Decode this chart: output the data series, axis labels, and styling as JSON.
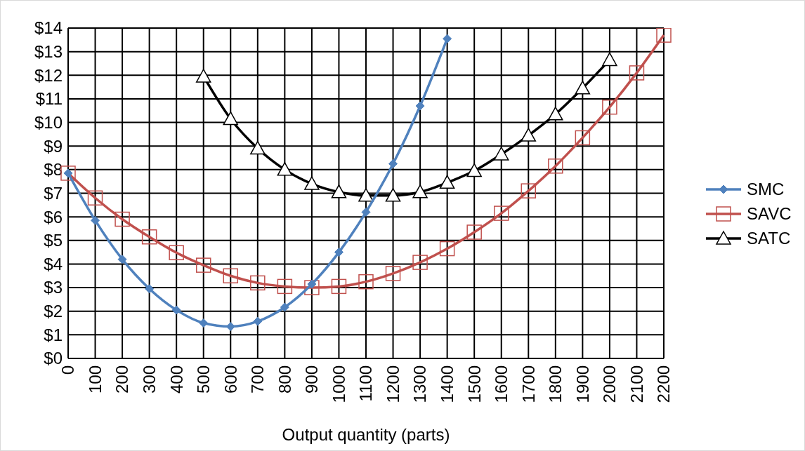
{
  "chart_data": {
    "type": "line",
    "xlabel": "Output quantity (parts)",
    "categories": [
      "0",
      "100",
      "200",
      "300",
      "400",
      "500",
      "600",
      "700",
      "800",
      "900",
      "1000",
      "1100",
      "1200",
      "1300",
      "1400",
      "1500",
      "1600",
      "1700",
      "1800",
      "1900",
      "2000",
      "2100",
      "2200"
    ],
    "ylim": [
      0,
      14
    ],
    "yticks": [
      {
        "value": 0,
        "label": "$0"
      },
      {
        "value": 1,
        "label": "$1"
      },
      {
        "value": 2,
        "label": "$2"
      },
      {
        "value": 3,
        "label": "$3"
      },
      {
        "value": 4,
        "label": "$4"
      },
      {
        "value": 5,
        "label": "$5"
      },
      {
        "value": 6,
        "label": "$6"
      },
      {
        "value": 7,
        "label": "$7"
      },
      {
        "value": 8,
        "label": "$8"
      },
      {
        "value": 9,
        "label": "$9"
      },
      {
        "value": 10,
        "label": "$10"
      },
      {
        "value": 11,
        "label": "$11"
      },
      {
        "value": 12,
        "label": "$12"
      },
      {
        "value": 13,
        "label": "$13"
      },
      {
        "value": 14,
        "label": "$14"
      }
    ],
    "grid": true,
    "legend": "right",
    "series": [
      {
        "name": "SMC",
        "color": "#4f81bd",
        "marker": "diamond",
        "values": [
          7.85,
          5.85,
          4.2,
          2.95,
          2.05,
          1.5,
          1.35,
          1.57,
          2.17,
          3.15,
          4.5,
          6.2,
          8.25,
          10.7,
          13.55,
          null,
          null,
          null,
          null,
          null,
          null,
          null,
          null
        ]
      },
      {
        "name": "SAVC",
        "color": "#c0504d",
        "marker": "square",
        "values": [
          7.85,
          6.8,
          5.9,
          5.15,
          4.48,
          3.95,
          3.5,
          3.2,
          3.05,
          3.0,
          3.05,
          3.25,
          3.6,
          4.07,
          4.65,
          5.35,
          6.15,
          7.1,
          8.15,
          9.35,
          10.65,
          12.1,
          13.7
        ]
      },
      {
        "name": "SATC",
        "color": "#000000",
        "marker": "triangle",
        "values": [
          null,
          null,
          null,
          null,
          null,
          11.95,
          10.15,
          8.9,
          8.0,
          7.4,
          7.05,
          6.9,
          6.9,
          7.05,
          7.45,
          7.95,
          8.65,
          9.45,
          10.35,
          11.45,
          12.65,
          null,
          null
        ]
      }
    ]
  }
}
